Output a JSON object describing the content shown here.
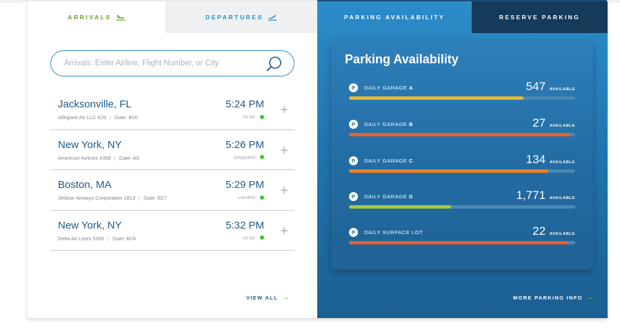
{
  "tabs": {
    "arrivals": "ARRIVALS",
    "departures": "DEPARTURES",
    "parking_availability": "PARKING AVAILABILITY",
    "reserve_parking": "RESERVE PARKING"
  },
  "search": {
    "placeholder": "Arrivals: Enter Airline, Flight Number, or City",
    "value": ""
  },
  "flights": [
    {
      "city": "Jacksonville, FL",
      "airline": "Allegiant Air LLC 629",
      "gate": "Gate: B20",
      "time": "5:24 PM",
      "status": "In Air"
    },
    {
      "city": "New York, NY",
      "airline": "American Airlines 4358",
      "gate": "Gate: A6",
      "time": "5:26 PM",
      "status": "Departed"
    },
    {
      "city": "Boston, MA",
      "airline": "Jetblue Airways Corporation 1813",
      "gate": "Gate: B27",
      "time": "5:29 PM",
      "status": "Landed"
    },
    {
      "city": "New York, NY",
      "airline": "Delta Air Lines 5395",
      "gate": "Gate: B24",
      "time": "5:32 PM",
      "status": "In Air"
    }
  ],
  "view_all": "VIEW ALL",
  "parking": {
    "title": "Parking Availability",
    "available_label": "AVAILABLE",
    "badge": "P",
    "lots": [
      {
        "prefix": "DAILY GARAGE",
        "letter": "A",
        "count": "547",
        "fill": 0.77,
        "color": "#e8b92c"
      },
      {
        "prefix": "DAILY GARAGE",
        "letter": "B",
        "count": "27",
        "fill": 0.98,
        "color": "#e8612a"
      },
      {
        "prefix": "DAILY GARAGE",
        "letter": "C",
        "count": "134",
        "fill": 0.88,
        "color": "#e8842a"
      },
      {
        "prefix": "DAILY GARAGE",
        "letter": "D",
        "count": "1,771",
        "fill": 0.45,
        "color": "#a6c93a"
      },
      {
        "prefix": "DAILY SURFACE LOT",
        "letter": "",
        "count": "22",
        "fill": 0.97,
        "color": "#e8612a"
      }
    ]
  },
  "more_parking_info": "MORE PARKING INFO",
  "colors": {
    "accent_green": "#6a9e1f",
    "accent_blue": "#2a8bc9",
    "status_dot": "#34c72a",
    "dark_navy": "#153a5a"
  }
}
